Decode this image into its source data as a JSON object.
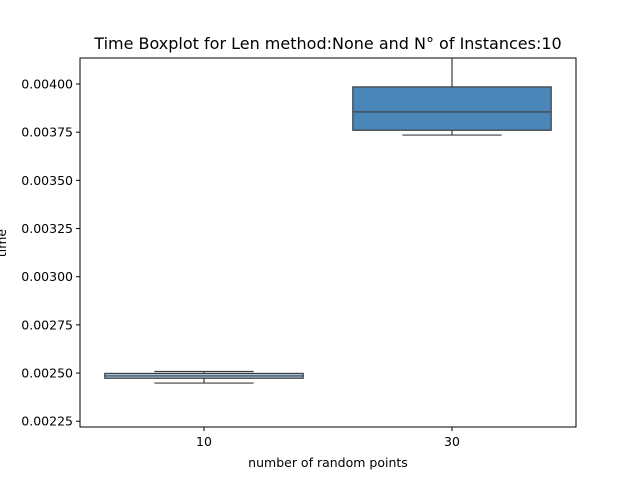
{
  "chart_data": {
    "type": "box",
    "title": "Time Boxplot for Len method:None and N° of Instances:10",
    "xlabel": "number of random points",
    "ylabel": "time",
    "categories": [
      "10",
      "30"
    ],
    "ylim": [
      0.00222,
      0.004135
    ],
    "yticks": [
      "0.00225",
      "0.00250",
      "0.00275",
      "0.00300",
      "0.00325",
      "0.00350",
      "0.00375",
      "0.00400"
    ],
    "ytick_values": [
      0.00225,
      0.0025,
      0.00275,
      0.003,
      0.00325,
      0.0035,
      0.00375,
      0.004
    ],
    "boxes": [
      {
        "category": "10",
        "whisker_low": 0.002448,
        "q1": 0.002473,
        "median": 0.002485,
        "q3": 0.002498,
        "whisker_high": 0.002508,
        "color": "#a6c8e4"
      },
      {
        "category": "30",
        "whisker_low": 0.003735,
        "q1": 0.00376,
        "median": 0.003855,
        "q3": 0.003985,
        "whisker_high": 0.00414,
        "color": "#4a87b8"
      }
    ],
    "grid": false,
    "legend": "none"
  }
}
